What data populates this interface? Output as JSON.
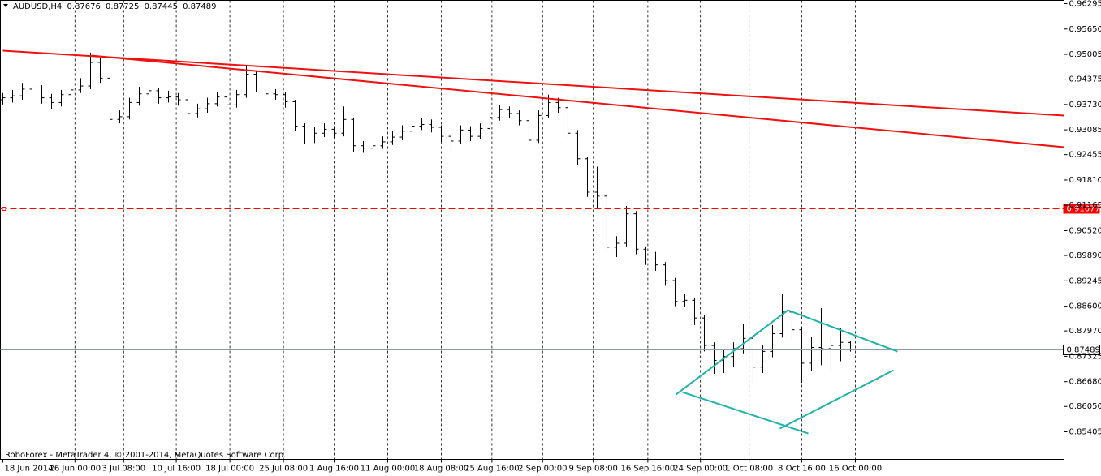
{
  "chart_data": {
    "type": "ohlc",
    "symbol": "AUDUSD,H4",
    "footer": "RoboForex - MetaTrader 4, © 2001-2014, MetaQuotes Software Corp.",
    "bar_color": "#000000",
    "open": [
      0.9385,
      0.939,
      0.9395,
      0.9412,
      0.9415,
      0.939,
      0.9378,
      0.9398,
      0.941,
      0.942,
      0.948,
      0.944,
      0.9335,
      0.9342,
      0.9378,
      0.94,
      0.9408,
      0.939,
      0.9392,
      0.9385,
      0.935,
      0.9362,
      0.9375,
      0.9392,
      0.9372,
      0.9398,
      0.945,
      0.9415,
      0.94,
      0.9398,
      0.938,
      0.9318,
      0.9285,
      0.93,
      0.931,
      0.93,
      0.9335,
      0.9268,
      0.9262,
      0.9268,
      0.9278,
      0.929,
      0.9305,
      0.9318,
      0.9322,
      0.9315,
      0.9292,
      0.928,
      0.9308,
      0.9292,
      0.9312,
      0.934,
      0.936,
      0.935,
      0.9332,
      0.9282,
      0.9345,
      0.9378,
      0.9365,
      0.93,
      0.9235,
      0.915,
      0.914,
      0.901,
      0.902,
      0.9095,
      0.9005,
      0.898,
      0.8965,
      0.8925,
      0.8872,
      0.8875,
      0.883,
      0.876,
      0.8722,
      0.8732,
      0.8752,
      0.8778,
      0.8705,
      0.8745,
      0.879,
      0.8845,
      0.88,
      0.8715,
      0.8755,
      0.8752,
      0.876,
      0.87676
    ],
    "high": [
      0.9402,
      0.941,
      0.9428,
      0.943,
      0.9422,
      0.94,
      0.941,
      0.9422,
      0.944,
      0.9505,
      0.9492,
      0.9448,
      0.9358,
      0.939,
      0.9418,
      0.9425,
      0.9415,
      0.9408,
      0.9402,
      0.9392,
      0.9375,
      0.939,
      0.9405,
      0.94,
      0.941,
      0.947,
      0.9458,
      0.9425,
      0.9412,
      0.9405,
      0.9385,
      0.9325,
      0.9315,
      0.9325,
      0.9318,
      0.9368,
      0.934,
      0.928,
      0.9282,
      0.9292,
      0.9305,
      0.932,
      0.9332,
      0.9338,
      0.9335,
      0.932,
      0.93,
      0.932,
      0.9318,
      0.9325,
      0.9352,
      0.9372,
      0.9368,
      0.9358,
      0.9338,
      0.9358,
      0.9398,
      0.939,
      0.9372,
      0.9308,
      0.924,
      0.9215,
      0.9148,
      0.9038,
      0.9115,
      0.9102,
      0.9012,
      0.8998,
      0.8972,
      0.8932,
      0.8892,
      0.8882,
      0.8838,
      0.8768,
      0.8748,
      0.8768,
      0.8815,
      0.8785,
      0.876,
      0.8812,
      0.889,
      0.8858,
      0.8808,
      0.8782,
      0.8855,
      0.8785,
      0.8805,
      0.87725
    ],
    "low": [
      0.9373,
      0.9378,
      0.9385,
      0.9398,
      0.9375,
      0.9362,
      0.9368,
      0.9388,
      0.9402,
      0.9412,
      0.9428,
      0.9322,
      0.9325,
      0.9335,
      0.937,
      0.9392,
      0.9375,
      0.9378,
      0.937,
      0.9338,
      0.934,
      0.9352,
      0.9368,
      0.936,
      0.9365,
      0.939,
      0.9405,
      0.9388,
      0.9385,
      0.9365,
      0.9305,
      0.9272,
      0.9275,
      0.929,
      0.9288,
      0.9292,
      0.9252,
      0.925,
      0.9252,
      0.926,
      0.927,
      0.9282,
      0.9298,
      0.9308,
      0.9302,
      0.9278,
      0.9245,
      0.9272,
      0.928,
      0.9285,
      0.9305,
      0.9332,
      0.9338,
      0.932,
      0.9268,
      0.9275,
      0.9338,
      0.9352,
      0.9288,
      0.922,
      0.9138,
      0.911,
      0.8995,
      0.8985,
      0.9012,
      0.8992,
      0.8965,
      0.895,
      0.8912,
      0.886,
      0.8858,
      0.8812,
      0.8745,
      0.8688,
      0.869,
      0.8705,
      0.874,
      0.8665,
      0.869,
      0.873,
      0.878,
      0.8772,
      0.8665,
      0.8695,
      0.871,
      0.869,
      0.872,
      0.87445
    ],
    "close": [
      0.939,
      0.9395,
      0.9412,
      0.9415,
      0.939,
      0.9378,
      0.9398,
      0.941,
      0.942,
      0.948,
      0.944,
      0.9335,
      0.9342,
      0.9378,
      0.94,
      0.9408,
      0.939,
      0.9392,
      0.9385,
      0.935,
      0.9362,
      0.9375,
      0.9392,
      0.9372,
      0.9398,
      0.945,
      0.9415,
      0.94,
      0.9398,
      0.938,
      0.9318,
      0.9285,
      0.93,
      0.931,
      0.93,
      0.9335,
      0.9268,
      0.9262,
      0.9268,
      0.9278,
      0.929,
      0.9305,
      0.9318,
      0.9322,
      0.9315,
      0.9292,
      0.928,
      0.9308,
      0.9292,
      0.9312,
      0.934,
      0.936,
      0.935,
      0.9332,
      0.9282,
      0.9345,
      0.9378,
      0.9365,
      0.93,
      0.9235,
      0.915,
      0.914,
      0.901,
      0.902,
      0.9095,
      0.9005,
      0.898,
      0.8965,
      0.8925,
      0.8872,
      0.8875,
      0.883,
      0.876,
      0.8722,
      0.8732,
      0.8752,
      0.8778,
      0.8705,
      0.8745,
      0.879,
      0.8845,
      0.88,
      0.8715,
      0.8755,
      0.8752,
      0.876,
      0.8768,
      0.87489
    ],
    "xlim": [
      -0.25,
      108.92
    ],
    "ylim": [
      0.84704,
      0.96377
    ],
    "xticks": [
      {
        "value": 0,
        "label": "18 Jun 2014"
      },
      {
        "value": 7.4,
        "label": "26 Jun 00:00"
      },
      {
        "value": 12.4,
        "label": "3 Jul 08:00"
      },
      {
        "value": 17.8,
        "label": "10 Jul 16:00"
      },
      {
        "value": 23.3,
        "label": "18 Jul 00:00"
      },
      {
        "value": 28.8,
        "label": "25 Jul 08:00"
      },
      {
        "value": 34,
        "label": "1 Aug 16:00"
      },
      {
        "value": 39.5,
        "label": "11 Aug 00:00"
      },
      {
        "value": 45,
        "label": "18 Aug 08:00"
      },
      {
        "value": 50.2,
        "label": "25 Aug 16:00"
      },
      {
        "value": 55.4,
        "label": "2 Sep 00:00"
      },
      {
        "value": 60.6,
        "label": "9 Sep 08:00"
      },
      {
        "value": 66.2,
        "label": "16 Sep 16:00"
      },
      {
        "value": 71.6,
        "label": "24 Sep 00:00"
      },
      {
        "value": 76.6,
        "label": "1 Oct 08:00"
      },
      {
        "value": 82,
        "label": "8 Oct 16:00"
      },
      {
        "value": 87.5,
        "label": "16 Oct 00:00"
      }
    ],
    "yticks": [
      0.96295,
      {
        "value": 0.9565,
        "label": "0.95650"
      },
      0.95005,
      0.94375,
      {
        "value": 0.9373,
        "label": "0.93730"
      },
      0.93085,
      0.92455,
      {
        "value": 0.9181,
        "label": "0.91810"
      },
      0.91165,
      {
        "value": 0.9052,
        "label": "0.90520"
      },
      {
        "value": 0.8989,
        "label": "0.89890"
      },
      0.89245,
      {
        "value": 0.886,
        "label": "0.88600"
      },
      {
        "value": 0.8797,
        "label": "0.87970"
      },
      0.87325,
      {
        "value": 0.8668,
        "label": "0.86680"
      },
      {
        "value": 0.8605,
        "label": "0.86050"
      },
      0.85405
    ],
    "grid": true,
    "hline": {
      "value": 0.91077,
      "color": "#ff0000"
    },
    "trendlines": [
      {
        "x": [
          0,
          108.92
        ],
        "y": [
          0.95098,
          0.93448
        ],
        "color": "#ee1111"
      },
      {
        "x": [
          9.08,
          108.92
        ],
        "y": [
          0.94975,
          0.92644
        ],
        "color": "#ee1111"
      },
      {
        "x": [
          69.08,
          80.58
        ],
        "y": [
          0.86353,
          0.88498
        ],
        "color": "#20b2aa"
      },
      {
        "x": [
          80.58,
          91.83
        ],
        "y": [
          0.88498,
          0.87446
        ],
        "color": "#20b2aa"
      },
      {
        "x": [
          69.75,
          82.67
        ],
        "y": [
          0.86415,
          0.85363
        ],
        "color": "#20b2aa"
      },
      {
        "x": [
          79.75,
          91.42
        ],
        "y": [
          0.85487,
          0.86972
        ],
        "color": "#20b2aa"
      }
    ]
  }
}
